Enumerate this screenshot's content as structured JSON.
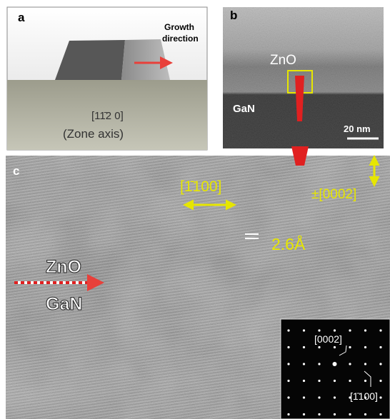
{
  "panel_a": {
    "label": "a",
    "annotation": [
      "Growth",
      "direction"
    ],
    "zone_axis": [
      "[11̄2 0]",
      "(Zone axis)"
    ]
  },
  "panel_b": {
    "label": "b",
    "layers": [
      "ZnO",
      "GaN"
    ],
    "scale_bar": "20 nm"
  },
  "panel_c": {
    "label": "c",
    "directions": [
      "[1̄100]",
      "±[0002]"
    ],
    "spacing": "2.6Å",
    "layers": [
      "ZnO",
      "GaN"
    ],
    "inset": [
      "[0002]",
      "[1̄100]"
    ]
  }
}
